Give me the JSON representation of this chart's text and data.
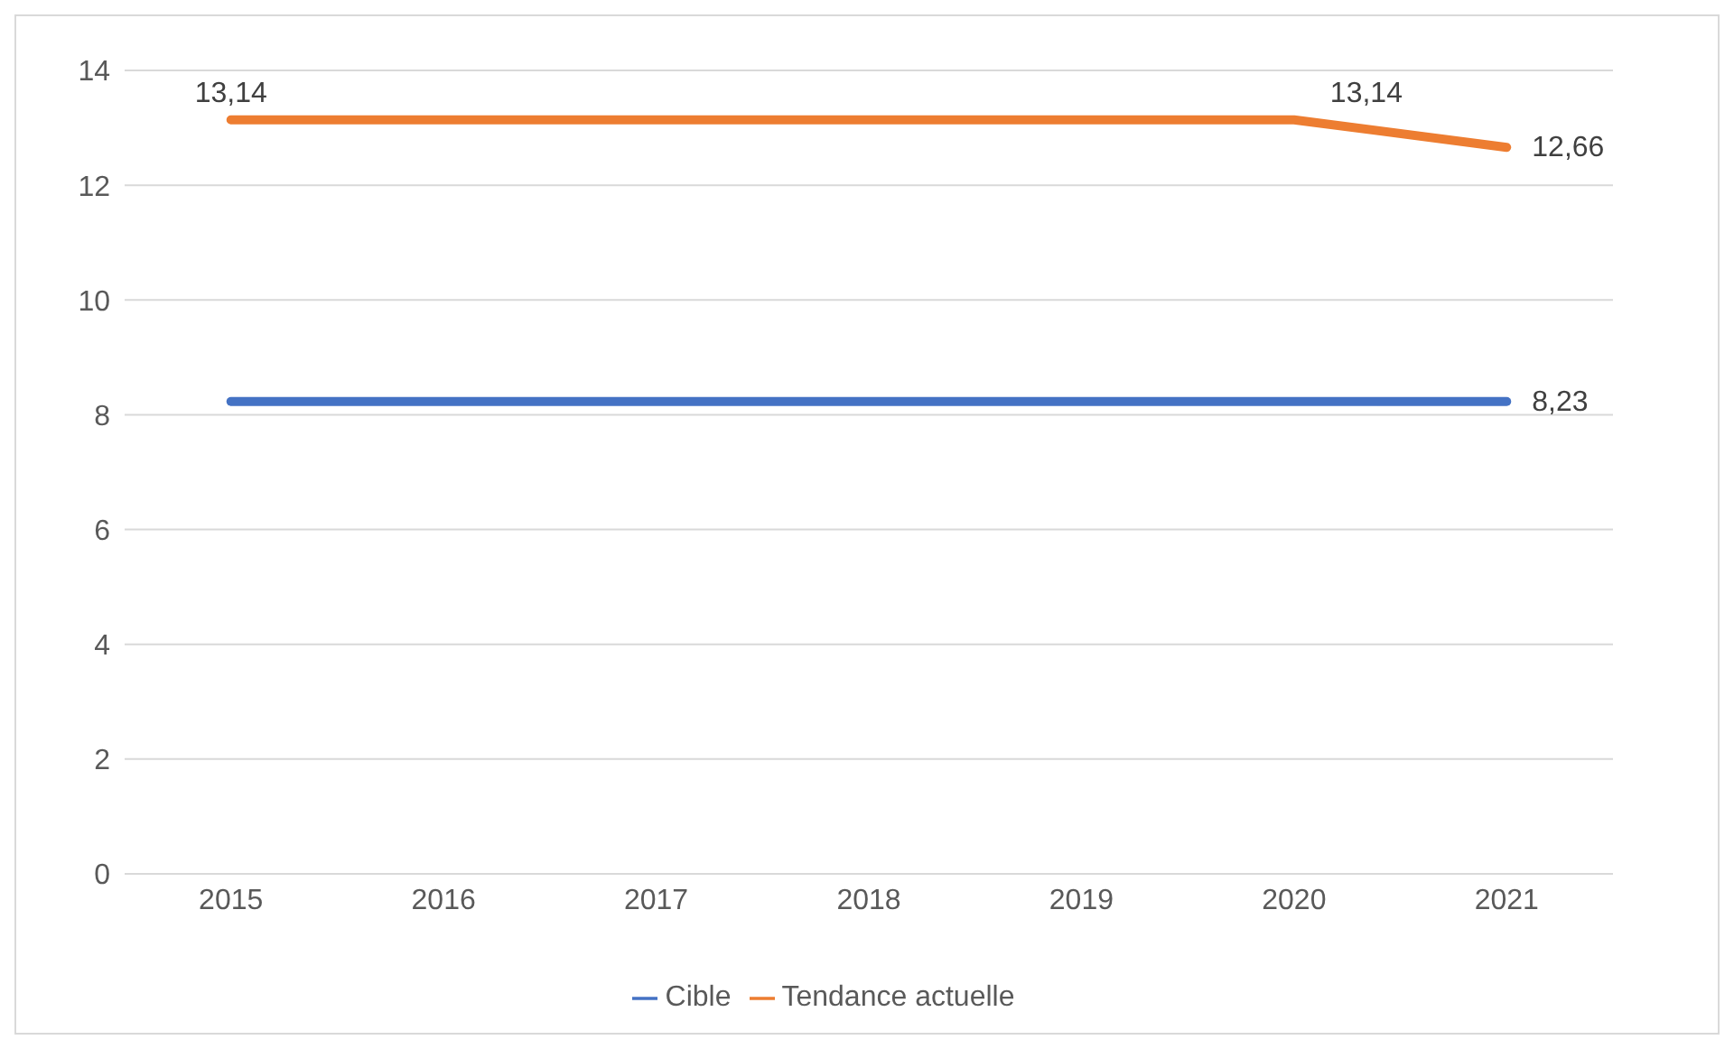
{
  "chart_data": {
    "type": "line",
    "categories": [
      "2015",
      "2016",
      "2017",
      "2018",
      "2019",
      "2020",
      "2021"
    ],
    "series": [
      {
        "name": "Cible",
        "color": "#4472c4",
        "values": [
          8.23,
          8.23,
          8.23,
          8.23,
          8.23,
          8.23,
          8.23
        ],
        "value_labels": [
          null,
          null,
          null,
          null,
          null,
          null,
          "8,23"
        ]
      },
      {
        "name": "Tendance actuelle",
        "color": "#ed7d31",
        "values": [
          13.14,
          13.14,
          13.14,
          13.14,
          13.14,
          13.14,
          12.66
        ],
        "value_labels": [
          "13,14",
          null,
          null,
          null,
          null,
          "13,14",
          "12,66"
        ]
      }
    ],
    "ylim": [
      0,
      14
    ],
    "yticks": [
      0,
      2,
      4,
      6,
      8,
      10,
      12,
      14
    ],
    "grid": "y",
    "legend": "bottom",
    "marker": "none",
    "line_style": "solid"
  }
}
